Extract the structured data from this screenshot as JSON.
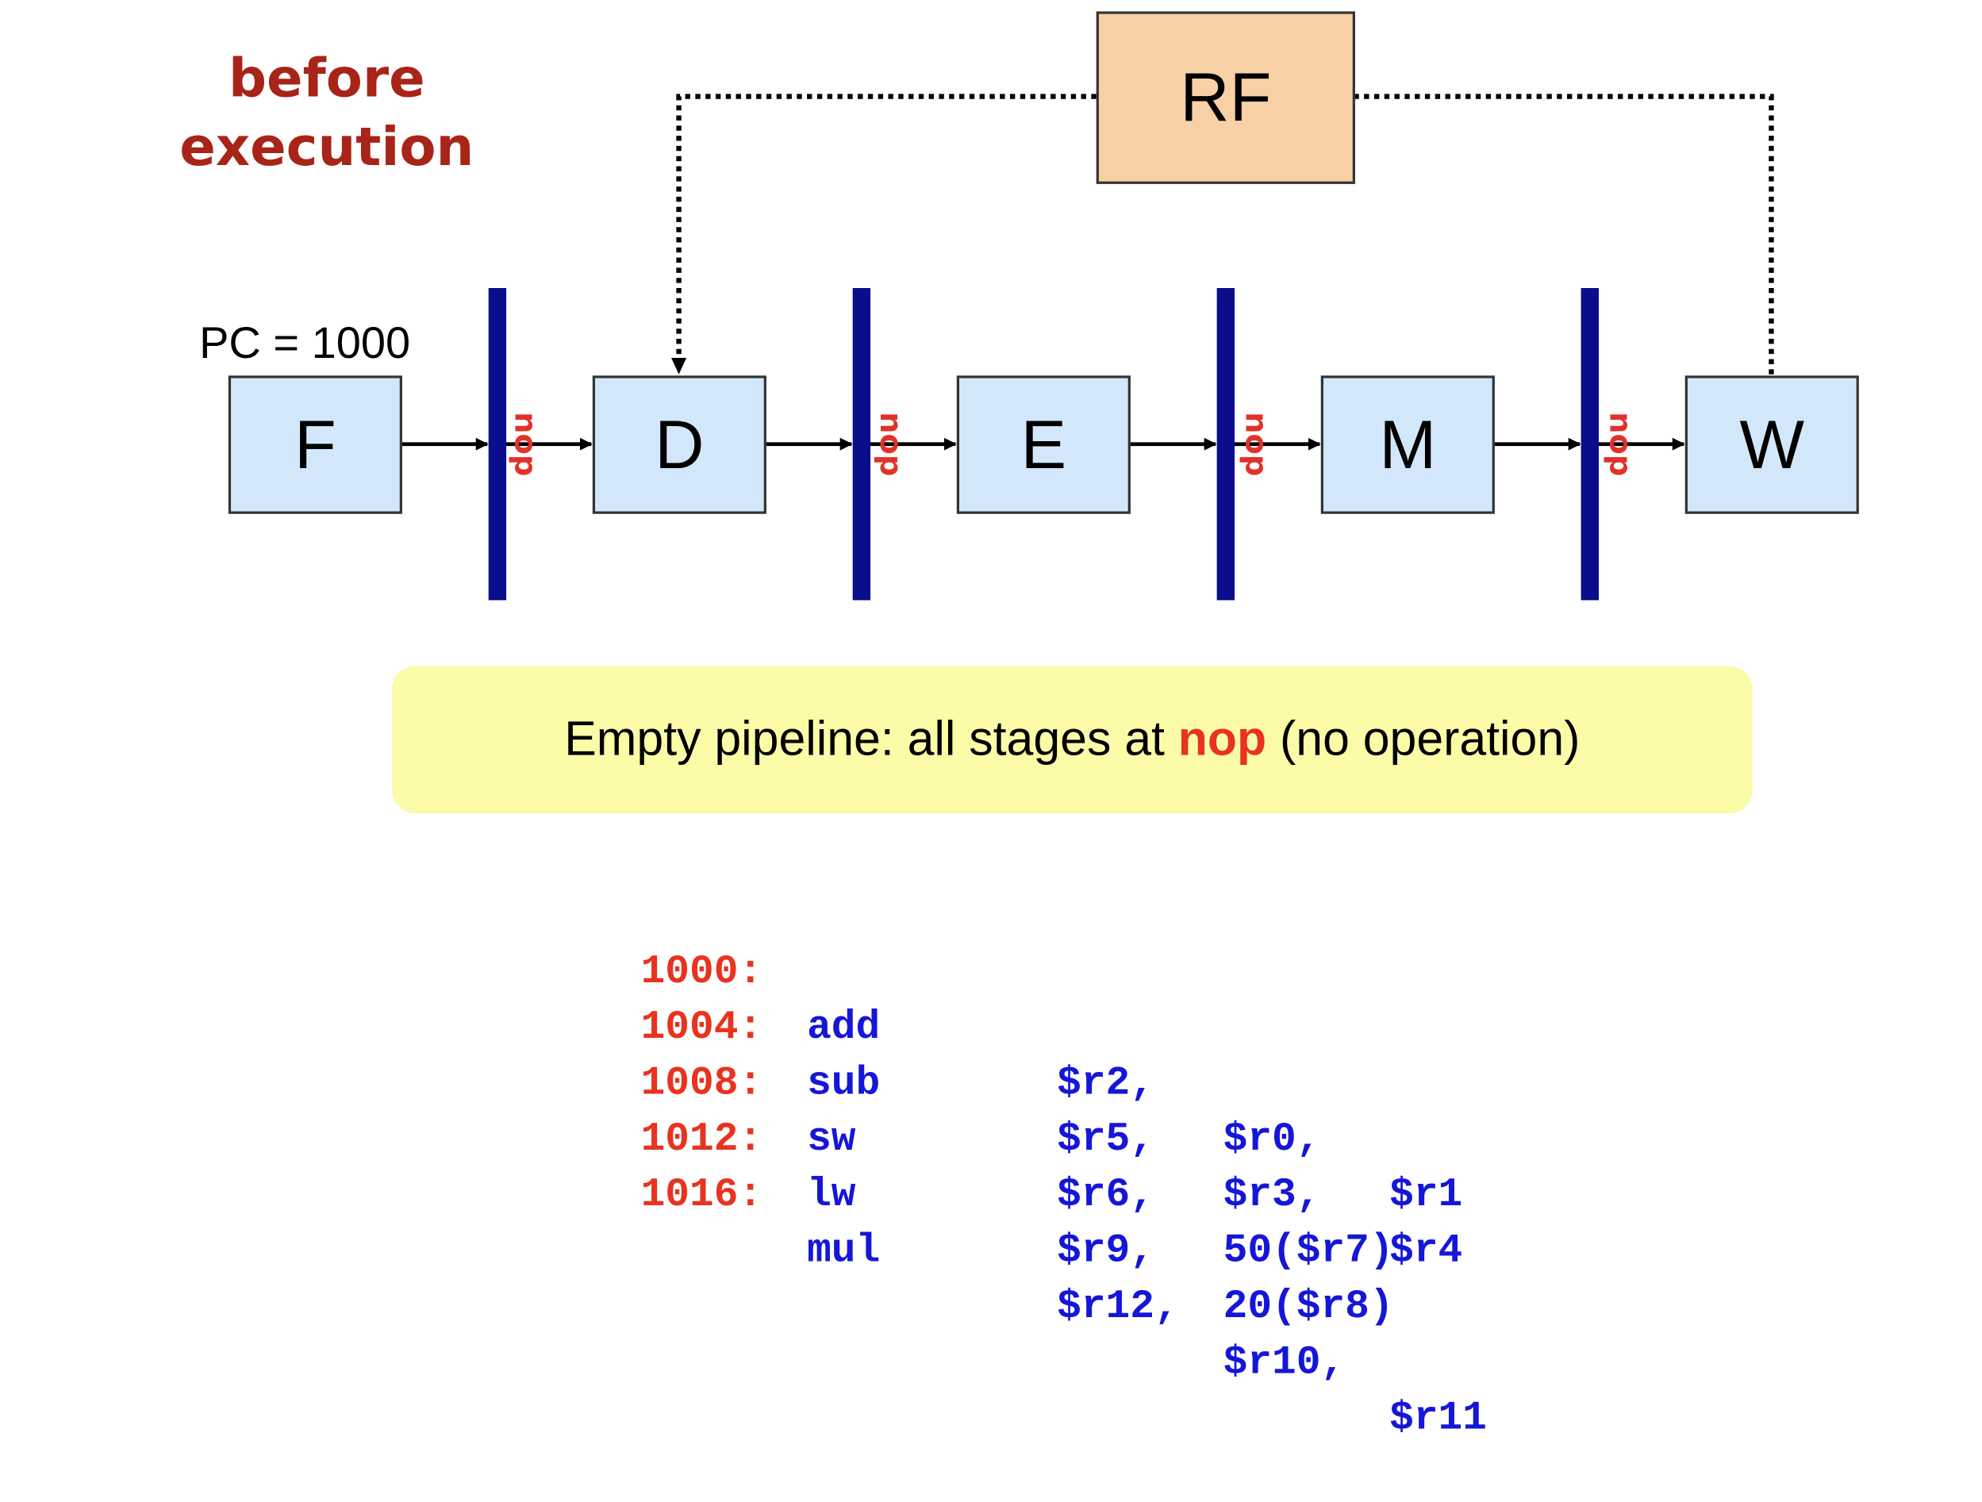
{
  "title": [
    "before",
    "execution"
  ],
  "pc_label": "PC = 1000",
  "register_file": "RF",
  "stages": [
    "F",
    "D",
    "E",
    "M",
    "W"
  ],
  "latch_label": "nop",
  "note": {
    "prefix": "Empty pipeline: all stages at ",
    "highlight": "nop",
    "suffix": " (no operation)"
  },
  "instructions": [
    {
      "address": "1000:",
      "op": "add",
      "args": [
        "$r2,",
        "$r0,",
        "$r1"
      ]
    },
    {
      "address": "1004:",
      "op": "sub",
      "args": [
        "$r5,",
        "$r3,",
        "$r4"
      ]
    },
    {
      "address": "1008:",
      "op": "sw",
      "args": [
        "$r6,",
        "50($r7)",
        ""
      ]
    },
    {
      "address": "1012:",
      "op": "lw",
      "args": [
        "$r9,",
        "20($r8)",
        ""
      ]
    },
    {
      "address": "1016:",
      "op": "mul",
      "args": [
        "$r12,",
        "$r10,",
        "$r11"
      ]
    }
  ],
  "colors": {
    "title": "#a82418",
    "latch": "#0a0e8c",
    "stage_fill": "#d2e8fa",
    "rf_fill": "#f8d0a5",
    "note_fill": "#fbfba8",
    "nop_red": "#e0322a",
    "code_blue": "#1616d8"
  }
}
